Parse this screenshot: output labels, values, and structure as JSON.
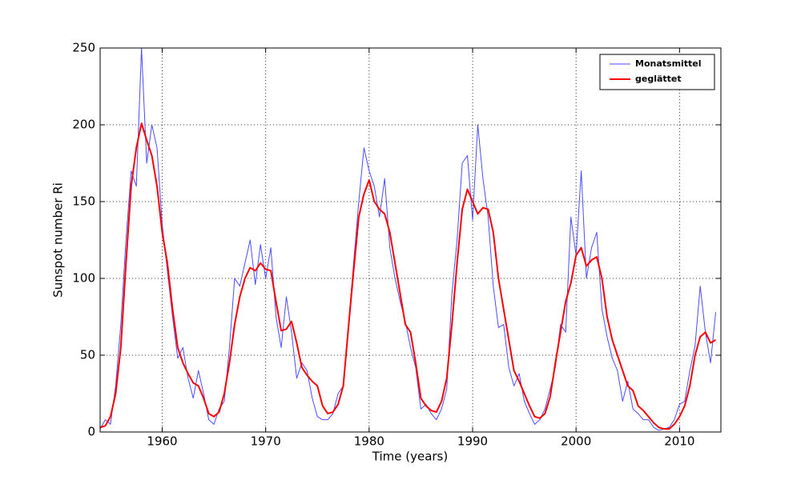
{
  "chart_data": {
    "type": "line",
    "x_label": "Time (years)",
    "y_label": "Sunspot number Ri",
    "x": [
      1954,
      1954.5,
      1955,
      1955.5,
      1956,
      1956.5,
      1957,
      1957.5,
      1958,
      1958.5,
      1959,
      1959.5,
      1960,
      1960.5,
      1961,
      1961.5,
      1962,
      1962.5,
      1963,
      1963.5,
      1964,
      1964.5,
      1965,
      1965.5,
      1966,
      1966.5,
      1967,
      1967.5,
      1968,
      1968.5,
      1969,
      1969.5,
      1970,
      1970.5,
      1971,
      1971.5,
      1972,
      1972.5,
      1973,
      1973.5,
      1974,
      1974.5,
      1975,
      1975.5,
      1976,
      1976.5,
      1977,
      1977.5,
      1978,
      1978.5,
      1979,
      1979.5,
      1980,
      1980.5,
      1981,
      1981.5,
      1982,
      1982.5,
      1983,
      1983.5,
      1984,
      1984.5,
      1985,
      1985.5,
      1986,
      1986.5,
      1987,
      1987.5,
      1988,
      1988.5,
      1989,
      1989.5,
      1990,
      1990.5,
      1991,
      1991.5,
      1992,
      1992.5,
      1993,
      1993.5,
      1994,
      1994.5,
      1995,
      1995.5,
      1996,
      1996.5,
      1997,
      1997.5,
      1998,
      1998.5,
      1999,
      1999.5,
      2000,
      2000.5,
      2001,
      2001.5,
      2002,
      2002.5,
      2003,
      2003.5,
      2004,
      2004.5,
      2005,
      2005.5,
      2006,
      2006.5,
      2007,
      2007.5,
      2008,
      2008.5,
      2009,
      2009.5,
      2010,
      2010.5,
      2011,
      2011.5,
      2012,
      2012.5,
      2013,
      2013.5
    ],
    "series": [
      {
        "name": "Monatsmittel",
        "color": "#4b4bff",
        "width": 1,
        "values": [
          2,
          8,
          5,
          30,
          70,
          125,
          170,
          160,
          250,
          175,
          200,
          185,
          135,
          105,
          75,
          48,
          55,
          35,
          22,
          40,
          25,
          8,
          5,
          15,
          20,
          55,
          100,
          95,
          110,
          125,
          96,
          122,
          100,
          120,
          75,
          55,
          88,
          65,
          35,
          45,
          40,
          22,
          10,
          8,
          8,
          12,
          25,
          30,
          70,
          110,
          150,
          185,
          170,
          160,
          140,
          165,
          120,
          100,
          85,
          72,
          55,
          42,
          15,
          18,
          12,
          8,
          15,
          28,
          90,
          125,
          175,
          180,
          138,
          200,
          165,
          140,
          95,
          68,
          70,
          42,
          30,
          38,
          20,
          12,
          5,
          8,
          15,
          28,
          42,
          70,
          65,
          140,
          115,
          170,
          100,
          120,
          130,
          80,
          62,
          48,
          40,
          20,
          33,
          15,
          12,
          8,
          8,
          3,
          1,
          2,
          3,
          8,
          18,
          20,
          40,
          56,
          95,
          65,
          45,
          78
        ]
      },
      {
        "name": "geglättet",
        "color": "#ff0000",
        "width": 2,
        "values": [
          3,
          4,
          10,
          25,
          55,
          110,
          160,
          185,
          201,
          190,
          180,
          160,
          130,
          110,
          80,
          55,
          45,
          38,
          32,
          30,
          22,
          12,
          10,
          13,
          25,
          45,
          70,
          88,
          100,
          107,
          105,
          110,
          106,
          105,
          85,
          66,
          67,
          72,
          58,
          42,
          37,
          33,
          30,
          17,
          12,
          13,
          18,
          30,
          68,
          105,
          140,
          155,
          164,
          150,
          145,
          142,
          130,
          110,
          90,
          70,
          65,
          45,
          22,
          17,
          14,
          13,
          20,
          35,
          70,
          110,
          145,
          158,
          150,
          142,
          146,
          145,
          130,
          100,
          80,
          60,
          40,
          33,
          25,
          17,
          10,
          9,
          12,
          23,
          45,
          65,
          85,
          97,
          115,
          120,
          108,
          112,
          114,
          100,
          75,
          60,
          50,
          40,
          30,
          27,
          17,
          14,
          10,
          6,
          3,
          2,
          2,
          5,
          10,
          17,
          30,
          50,
          62,
          65,
          58,
          60
        ]
      }
    ],
    "xlim": [
      1954,
      2014
    ],
    "ylim": [
      0,
      250
    ],
    "xticks": [
      1960,
      1970,
      1980,
      1990,
      2000,
      2010
    ],
    "yticks": [
      0,
      50,
      100,
      150,
      200,
      250
    ],
    "grid": true,
    "legend": "upper right"
  }
}
